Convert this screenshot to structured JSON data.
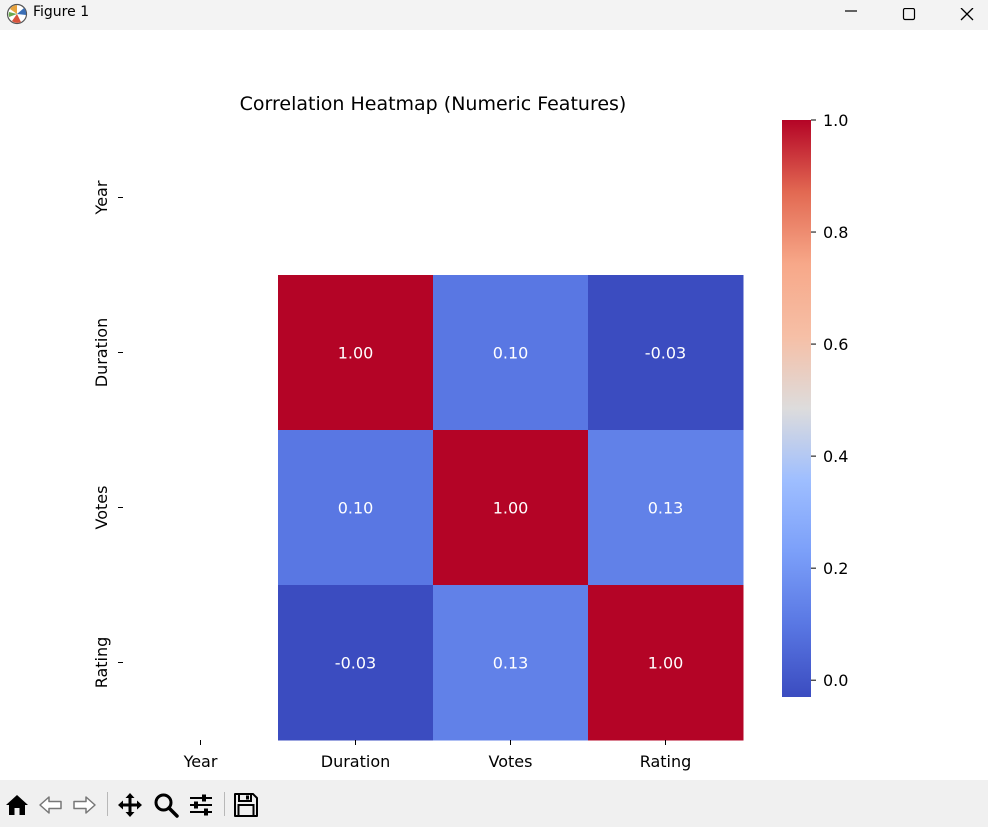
{
  "window": {
    "title": "Figure 1",
    "icon": "matplotlib-logo-icon",
    "controls": [
      "minimize-icon",
      "maximize-icon",
      "close-icon"
    ]
  },
  "toolbar": {
    "buttons": [
      {
        "name": "home-button",
        "icon": "home-icon"
      },
      {
        "name": "back-button",
        "icon": "back-arrow-icon"
      },
      {
        "name": "forward-button",
        "icon": "forward-arrow-icon"
      },
      {
        "name": "pan-button",
        "icon": "move-icon"
      },
      {
        "name": "zoom-button",
        "icon": "search-icon"
      },
      {
        "name": "configure-subplots-button",
        "icon": "sliders-icon"
      },
      {
        "name": "save-button",
        "icon": "save-icon"
      }
    ]
  },
  "chart_data": {
    "type": "heatmap",
    "title": "Correlation Heatmap (Numeric Features)",
    "xlabel": "",
    "ylabel": "",
    "x_categories": [
      "Year",
      "Duration",
      "Votes",
      "Rating"
    ],
    "y_categories": [
      "Year",
      "Duration",
      "Votes",
      "Rating"
    ],
    "values": [
      [
        null,
        null,
        null,
        null
      ],
      [
        null,
        1.0,
        0.1,
        -0.03
      ],
      [
        null,
        0.1,
        1.0,
        0.13
      ],
      [
        null,
        -0.03,
        0.13,
        1.0
      ]
    ],
    "annotations": [
      [
        null,
        null,
        null,
        null
      ],
      [
        null,
        "1.00",
        "0.10",
        "-0.03"
      ],
      [
        null,
        "0.10",
        "1.00",
        "0.13"
      ],
      [
        null,
        "-0.03",
        "0.13",
        "1.00"
      ]
    ],
    "colormap": "coolwarm",
    "vmin": -0.03,
    "vmax": 1.0,
    "colorbar_ticks": [
      "0.0",
      "0.2",
      "0.4",
      "0.6",
      "0.8",
      "1.0"
    ],
    "colorbar_tick_values": [
      0.0,
      0.2,
      0.4,
      0.6,
      0.8,
      1.0
    ],
    "grid": false
  }
}
